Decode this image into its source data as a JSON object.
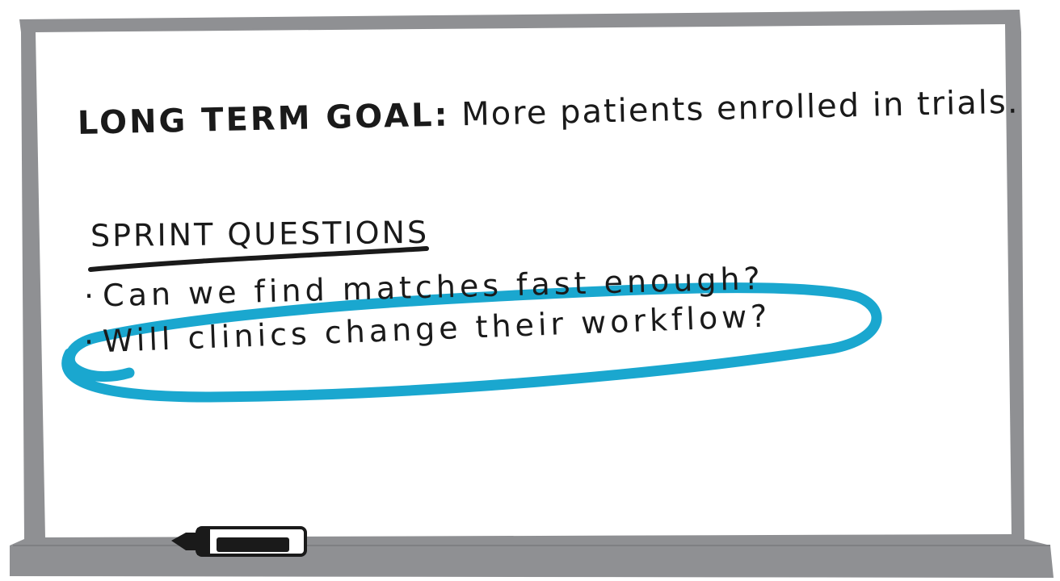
{
  "board": {
    "frame_color": "#8f9093",
    "surface_color": "#ffffff",
    "ink_color": "#1a1a1a",
    "highlight_color": "#1aa7cf"
  },
  "goal": {
    "label": "LONG TERM GOAL:",
    "text": "More patients enrolled in trials."
  },
  "sprint_questions": {
    "heading": "SPRINT QUESTIONS",
    "items": [
      {
        "bullet": "·",
        "text": "Can we find matches fast enough?"
      },
      {
        "bullet": "·",
        "text": "Will clinics change their workflow?"
      }
    ],
    "highlighted_index": 1
  },
  "marker": {
    "icon": "dry-erase-marker-icon"
  }
}
